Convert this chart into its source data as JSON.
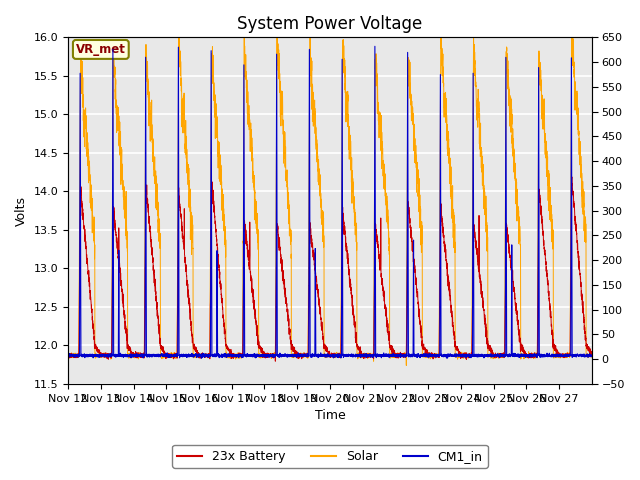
{
  "title": "System Power Voltage",
  "xlabel": "Time",
  "ylabel": "Volts",
  "ylim_left": [
    11.5,
    16.0
  ],
  "ylim_right": [
    -50,
    650
  ],
  "yticks_left": [
    11.5,
    12.0,
    12.5,
    13.0,
    13.5,
    14.0,
    14.5,
    15.0,
    15.5,
    16.0
  ],
  "yticks_right": [
    -50,
    0,
    50,
    100,
    150,
    200,
    250,
    300,
    350,
    400,
    450,
    500,
    550,
    600,
    650
  ],
  "num_days": 16,
  "xtick_labels": [
    "Nov 12",
    "Nov 13",
    "Nov 14",
    "Nov 15",
    "Nov 16",
    "Nov 17",
    "Nov 18",
    "Nov 19",
    "Nov 20",
    "Nov 21",
    "Nov 22",
    "Nov 23",
    "Nov 24",
    "Nov 25",
    "Nov 26",
    "Nov 27"
  ],
  "annotation_text": "VR_met",
  "battery_color": "#cc0000",
  "solar_color": "#ffa500",
  "cm1_color": "#0000cc",
  "legend_labels": [
    "23x Battery",
    "Solar",
    "CM1_in"
  ],
  "background_color": "#e8e8e8",
  "grid_color": "#ffffff",
  "title_fontsize": 12,
  "label_fontsize": 9,
  "tick_fontsize": 8
}
